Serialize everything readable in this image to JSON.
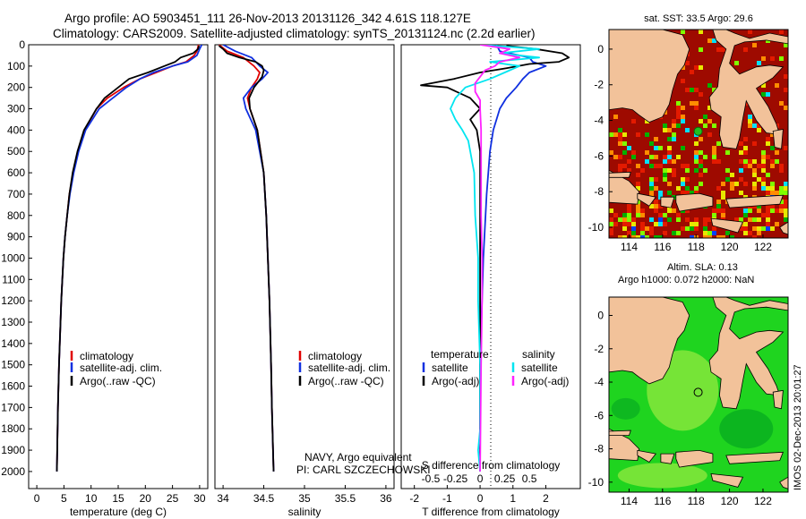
{
  "title": {
    "line1": "Argo profile: AO 5903451_111 26-Nov-2013 20131126_342 4.61S 118.127E",
    "line2": "Climatology: CARS2009. Satellite-adjusted climatology: synTS_20131124.nc (2.2d earlier)"
  },
  "colors": {
    "climatology": "#e00000",
    "satellite": "#1030e0",
    "argo": "#000000",
    "sal_satellite": "#00e5f0",
    "sal_argo": "#ff22ff",
    "sst_hot": "#9e0a00",
    "sst_red": "#e31a00",
    "sst_orange": "#ff8c00",
    "sst_yellow": "#e8e800",
    "sst_lime": "#80ff00",
    "sst_green": "#00b000",
    "sst_cyan": "#00e0ff",
    "sst_blue": "#0040ff",
    "land": "#f2c29a",
    "sla_sea": "#1fd41f",
    "sla_sea_light": "#7fe63a",
    "sla_dark": "#00a020"
  },
  "depth_axis": {
    "ticks": [
      0,
      100,
      200,
      300,
      400,
      500,
      600,
      700,
      800,
      900,
      1000,
      1100,
      1200,
      1300,
      1400,
      1500,
      1600,
      1700,
      1800,
      1900,
      2000
    ],
    "range": [
      0,
      2080
    ]
  },
  "chart_data": [
    {
      "type": "line",
      "panel": "temperature",
      "xlabel": "temperature (deg C)",
      "ylabel": "depth",
      "xlim": [
        -1.5,
        31.5
      ],
      "ylim": [
        2080,
        0
      ],
      "xticks": [
        0,
        5,
        10,
        15,
        20,
        25,
        30
      ],
      "legend": [
        "climatology",
        "satellite-adj. clim.",
        "Argo(..raw -QC)"
      ],
      "series": [
        {
          "name": "climatology",
          "depth": [
            0,
            30,
            50,
            80,
            100,
            130,
            160,
            200,
            250,
            300,
            400,
            500,
            600,
            700,
            800,
            900,
            1000,
            1200,
            1500,
            1700,
            2000
          ],
          "values": [
            29.8,
            29.5,
            29.0,
            27.5,
            25.0,
            22.0,
            19.0,
            16.0,
            13.0,
            11.0,
            8.8,
            7.6,
            6.7,
            6.0,
            5.6,
            5.2,
            4.9,
            4.5,
            4.1,
            3.9,
            3.7
          ]
        },
        {
          "name": "satellite-adj. clim.",
          "depth": [
            0,
            20,
            50,
            80,
            100,
            130,
            160,
            200,
            250,
            300,
            400,
            500,
            600,
            700,
            800,
            900,
            1000,
            1200,
            1500,
            1700,
            2000
          ],
          "values": [
            30.4,
            30.0,
            29.5,
            27.8,
            25.0,
            21.5,
            19.0,
            16.5,
            14.0,
            11.5,
            9.0,
            7.7,
            6.8,
            6.1,
            5.6,
            5.2,
            4.9,
            4.5,
            4.1,
            3.9,
            3.7
          ]
        },
        {
          "name": "Argo(..raw -QC)",
          "depth": [
            5,
            20,
            40,
            60,
            80,
            100,
            130,
            160,
            200,
            250,
            300,
            400,
            500,
            600,
            700,
            800,
            900,
            1000,
            1200,
            1500,
            1700,
            2000
          ],
          "values": [
            29.9,
            29.7,
            28.8,
            26.5,
            25.5,
            23.5,
            20.5,
            17.0,
            15.0,
            12.5,
            11.0,
            8.7,
            7.5,
            6.6,
            6.0,
            5.6,
            5.2,
            4.9,
            4.5,
            4.1,
            3.9,
            3.7
          ]
        }
      ]
    },
    {
      "type": "line",
      "panel": "salinity",
      "xlabel": "salinity",
      "ylabel": "depth",
      "xlim": [
        33.9,
        36.1
      ],
      "ylim": [
        2080,
        0
      ],
      "xticks": [
        34,
        34.5,
        35,
        35.5,
        36
      ],
      "legend": [
        "climatology",
        "satellite-adj. clim.",
        "Argo(..raw -QC)"
      ],
      "annotations": [
        "NAVY, Argo equivalent",
        "PI: CARL SZCZECHOWSKI"
      ],
      "series": [
        {
          "name": "climatology",
          "depth": [
            0,
            30,
            60,
            100,
            130,
            160,
            200,
            250,
            300,
            400,
            600,
            800,
            1000,
            1200,
            1500,
            1700,
            2000
          ],
          "values": [
            33.95,
            34.05,
            34.25,
            34.38,
            34.45,
            34.42,
            34.35,
            34.3,
            34.33,
            34.42,
            34.5,
            34.53,
            34.55,
            34.57,
            34.59,
            34.6,
            34.62
          ]
        },
        {
          "name": "satellite-adj. clim.",
          "depth": [
            0,
            30,
            60,
            100,
            130,
            160,
            200,
            250,
            300,
            400,
            600,
            800,
            1000,
            1200,
            1500,
            1700,
            2000
          ],
          "values": [
            34.0,
            34.15,
            34.35,
            34.45,
            34.55,
            34.48,
            34.35,
            34.25,
            34.28,
            34.4,
            34.5,
            34.53,
            34.55,
            34.57,
            34.59,
            34.6,
            34.62
          ]
        },
        {
          "name": "Argo(..raw -QC)",
          "depth": [
            5,
            20,
            40,
            60,
            80,
            100,
            120,
            150,
            180,
            200,
            250,
            300,
            400,
            600,
            800,
            1000,
            1200,
            1500,
            1700,
            2000
          ],
          "values": [
            33.95,
            34.0,
            34.05,
            34.2,
            34.4,
            34.48,
            34.5,
            34.48,
            34.42,
            34.38,
            34.32,
            34.33,
            34.42,
            34.5,
            34.53,
            34.55,
            34.57,
            34.59,
            34.6,
            34.62
          ]
        }
      ]
    },
    {
      "type": "line",
      "panel": "difference",
      "xlabel": "T difference from climatology",
      "xlabel_top": "S difference from climatology",
      "ylabel": "depth",
      "xlim": [
        -2.4,
        3.05
      ],
      "xlim_salinity": [
        -0.8,
        1.0167
      ],
      "ylim": [
        2080,
        0
      ],
      "xticks": [
        -2,
        -1,
        0,
        1,
        2
      ],
      "xticks_salinity": [
        -0.5,
        -0.25,
        0,
        0.25,
        0.5
      ],
      "legend_temperature": [
        "temperature",
        "satellite",
        "Argo(-adj)"
      ],
      "legend_salinity": [
        "salinity",
        "satellite",
        "Argo(-adj)"
      ],
      "series": [
        {
          "name": "temperature satellite",
          "depth": [
            0,
            30,
            60,
            80,
            100,
            130,
            160,
            200,
            250,
            300,
            400,
            500,
            700,
            1000,
            1500,
            2000
          ],
          "values": [
            0.5,
            0.6,
            1.5,
            1.6,
            2.0,
            1.5,
            1.3,
            1.1,
            0.8,
            0.6,
            0.4,
            0.3,
            0.2,
            0.1,
            0.0,
            0.0
          ]
        },
        {
          "name": "temperature Argo(-adj)",
          "depth": [
            5,
            20,
            40,
            60,
            80,
            90,
            110,
            130,
            160,
            190,
            200,
            250,
            300,
            350,
            400,
            500,
            700,
            1000,
            1500,
            2000
          ],
          "values": [
            0.8,
            1.7,
            2.5,
            2.7,
            2.4,
            1.5,
            0.8,
            0.0,
            -0.8,
            -1.8,
            -1.0,
            -0.3,
            0.0,
            -0.3,
            -0.1,
            0.0,
            0.0,
            0.0,
            0.0,
            0.0
          ]
        },
        {
          "name": "salinity satellite",
          "depth": [
            0,
            20,
            40,
            60,
            80,
            100,
            130,
            160,
            200,
            250,
            300,
            350,
            400,
            450,
            500,
            600,
            800,
            1000,
            1200,
            1500,
            1800,
            1900,
            2000
          ],
          "values": [
            0.0,
            0.6,
            0.2,
            0.6,
            0.1,
            0.4,
            0.25,
            0.1,
            -0.15,
            -0.25,
            -0.3,
            -0.25,
            -0.18,
            -0.12,
            -0.1,
            -0.06,
            -0.05,
            -0.02,
            -0.02,
            0.0,
            0.0,
            -0.02,
            0.0
          ]
        },
        {
          "name": "salinity Argo(-adj)",
          "depth": [
            0,
            20,
            40,
            60,
            80,
            100,
            120,
            150,
            180,
            220,
            260,
            300,
            400,
            600,
            800,
            1000,
            1200,
            1500,
            2000
          ],
          "values": [
            0.0,
            0.3,
            0.2,
            0.4,
            0.2,
            0.15,
            0.05,
            0.0,
            -0.05,
            -0.05,
            0.0,
            0.0,
            0.01,
            0.01,
            0.01,
            0.02,
            0.02,
            0.01,
            0.0
          ]
        }
      ]
    },
    {
      "type": "heatmap",
      "panel": "sst_map",
      "title": "sat. SST: 33.5 Argo: 29.6",
      "xlim": [
        112.8,
        123.5
      ],
      "ylim": [
        -10.6,
        1.1
      ],
      "xticks": [
        114,
        116,
        118,
        120,
        122
      ],
      "yticks": [
        0,
        -2,
        -4,
        -6,
        -8,
        -10
      ],
      "argo_position": {
        "lon": 118.127,
        "lat": -4.61
      }
    },
    {
      "type": "heatmap",
      "panel": "sla_map",
      "title_line1": "Altim. SLA: 0.13",
      "title_line2": "Argo h1000: 0.072 h2000: NaN",
      "xlim": [
        112.8,
        123.5
      ],
      "ylim": [
        -10.6,
        1.1
      ],
      "xticks": [
        114,
        116,
        118,
        120,
        122
      ],
      "yticks": [
        0,
        -2,
        -4,
        -6,
        -8,
        -10
      ],
      "argo_position": {
        "lon": 118.127,
        "lat": -4.61
      }
    }
  ],
  "footer": {
    "credit": "IMOS 02-Dec-2013 20:01:27"
  }
}
